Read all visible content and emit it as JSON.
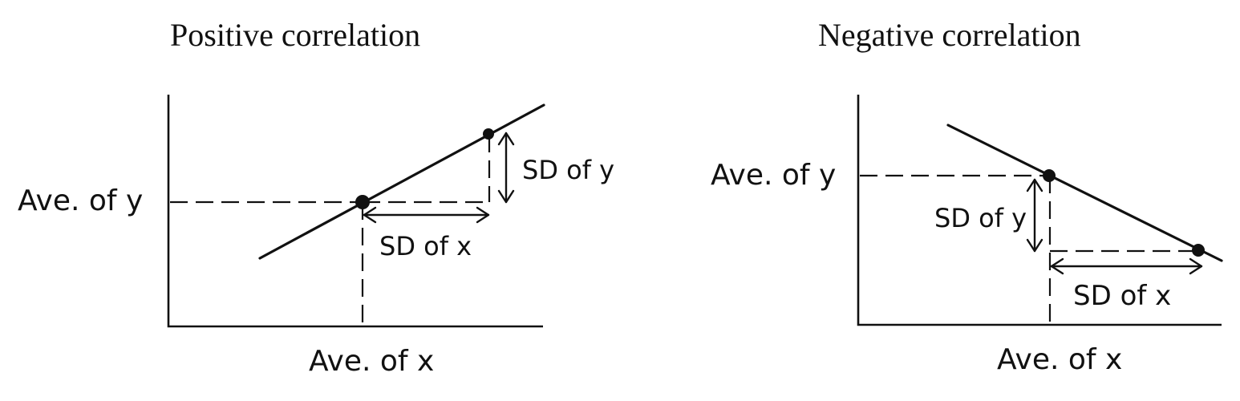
{
  "panels": {
    "positive": {
      "title": "Positive correlation",
      "y_label": "Ave. of y",
      "x_label": "Ave. of x",
      "sd_y_label": "SD of y",
      "sd_x_label": "SD of x"
    },
    "negative": {
      "title": "Negative correlation",
      "y_label": "Ave. of y",
      "x_label": "Ave. of x",
      "sd_y_label": "SD of y",
      "sd_x_label": "SD of x"
    }
  }
}
